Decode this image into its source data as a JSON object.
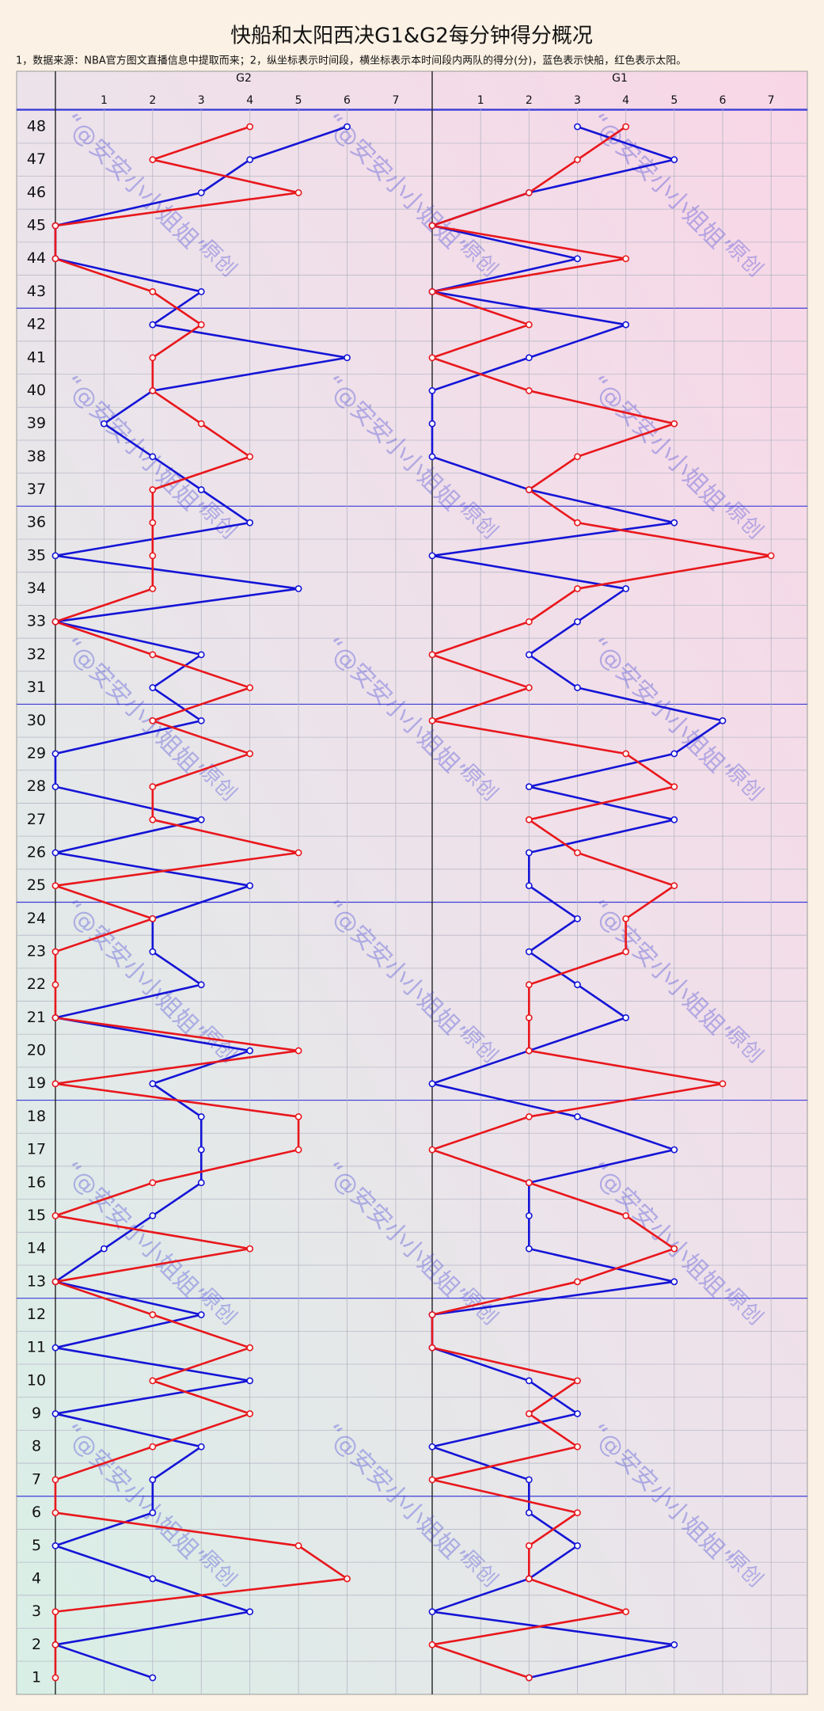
{
  "title": "快船和太阳西决G1&G2每分钟得分概况",
  "note": "1，数据来源：NBA官方图文直播信息中提取而来；2，纵坐标表示时间段，横坐标表示本时间段内两队的得分(分)，蓝色表示快船，红色表示太阳。",
  "watermark": {
    "text": "“@安安小小姐姐”",
    "tag": "原创"
  },
  "chart_data": [
    {
      "type": "line",
      "orientation": "horizontal",
      "title": "G2",
      "categories": [
        1,
        2,
        3,
        4,
        5,
        6,
        7,
        8,
        9,
        10,
        11,
        12,
        13,
        14,
        15,
        16,
        17,
        18,
        19,
        20,
        21,
        22,
        23,
        24,
        25,
        26,
        27,
        28,
        29,
        30,
        31,
        32,
        33,
        34,
        35,
        36,
        37,
        38,
        39,
        40,
        41,
        42,
        43,
        44,
        45,
        46,
        47,
        48
      ],
      "series": [
        {
          "color": "#1414d6",
          "values": [
            2,
            0,
            4,
            2,
            0,
            2,
            2,
            3,
            0,
            4,
            0,
            3,
            0,
            1,
            2,
            3,
            3,
            3,
            2,
            4,
            0,
            3,
            2,
            2,
            4,
            0,
            3,
            0,
            0,
            3,
            2,
            3,
            0,
            5,
            0,
            4,
            3,
            2,
            1,
            2,
            6,
            2,
            3,
            0,
            0,
            3,
            4,
            6
          ]
        },
        {
          "color": "#e8171c",
          "values": [
            0,
            0,
            0,
            6,
            5,
            0,
            0,
            2,
            4,
            2,
            4,
            2,
            0,
            4,
            0,
            2,
            5,
            5,
            0,
            5,
            0,
            0,
            0,
            2,
            0,
            5,
            2,
            2,
            4,
            2,
            4,
            2,
            0,
            2,
            2,
            2,
            2,
            4,
            3,
            2,
            2,
            3,
            2,
            0,
            0,
            5,
            2,
            4
          ]
        }
      ],
      "xlim": [
        0,
        7.75
      ],
      "xticks": [
        1,
        2,
        3,
        4,
        5,
        6,
        7
      ],
      "grid": true
    },
    {
      "type": "line",
      "orientation": "horizontal",
      "title": "G1",
      "categories": [
        1,
        2,
        3,
        4,
        5,
        6,
        7,
        8,
        9,
        10,
        11,
        12,
        13,
        14,
        15,
        16,
        17,
        18,
        19,
        20,
        21,
        22,
        23,
        24,
        25,
        26,
        27,
        28,
        29,
        30,
        31,
        32,
        33,
        34,
        35,
        36,
        37,
        38,
        39,
        40,
        41,
        42,
        43,
        44,
        45,
        46,
        47,
        48
      ],
      "series": [
        {
          "color": "#1414d6",
          "values": [
            2,
            5,
            0,
            2,
            3,
            2,
            2,
            0,
            3,
            2,
            0,
            0,
            5,
            2,
            2,
            2,
            5,
            3,
            0,
            2,
            4,
            3,
            2,
            3,
            2,
            2,
            5,
            2,
            5,
            6,
            3,
            2,
            3,
            4,
            0,
            5,
            2,
            0,
            0,
            0,
            2,
            4,
            0,
            3,
            0,
            2,
            5,
            3
          ]
        },
        {
          "color": "#e8171c",
          "values": [
            2,
            0,
            4,
            2,
            2,
            3,
            0,
            3,
            2,
            3,
            0,
            0,
            3,
            5,
            4,
            2,
            0,
            2,
            6,
            2,
            2,
            2,
            4,
            4,
            5,
            3,
            2,
            5,
            4,
            0,
            2,
            0,
            2,
            3,
            7,
            3,
            2,
            3,
            5,
            2,
            0,
            2,
            0,
            4,
            0,
            2,
            3,
            4
          ]
        }
      ],
      "xlim": [
        0,
        7.75
      ],
      "xticks": [
        1,
        2,
        3,
        4,
        5,
        6,
        7
      ],
      "grid": true
    }
  ]
}
